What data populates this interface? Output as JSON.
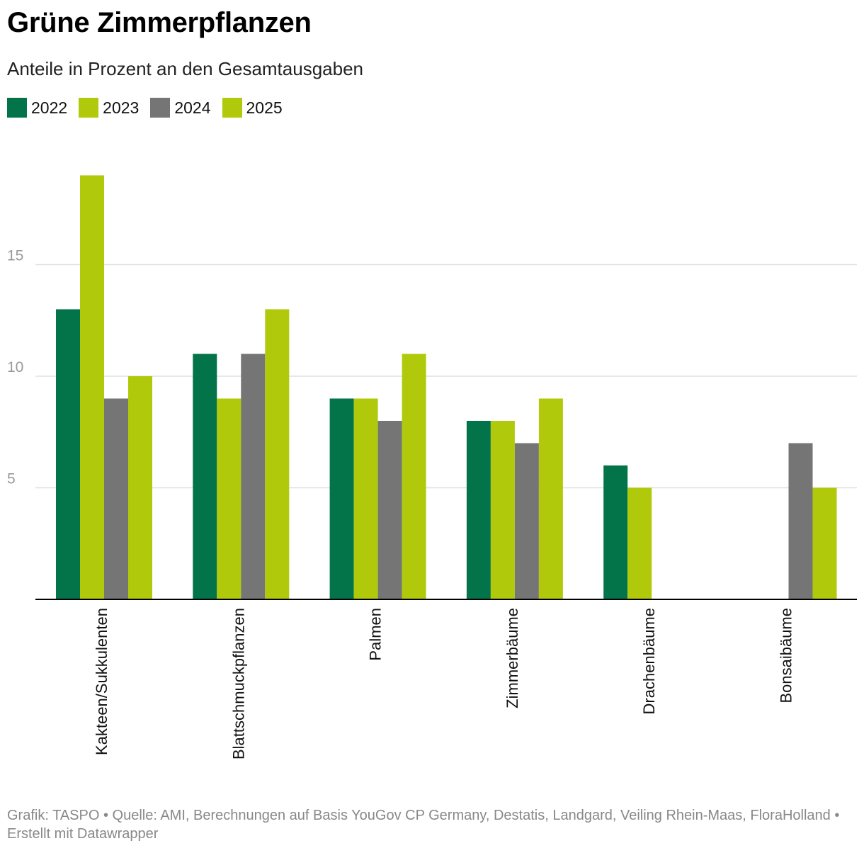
{
  "title": "Grüne Zimmerpflanzen",
  "subtitle": "Anteile in Prozent an den Gesamtausgaben",
  "footer": "Grafik: TASPO • Quelle: AMI, Berechnungen auf Basis YouGov CP Germany, Destatis, Landgard, Veiling Rhein-Maas, FloraHolland • Erstellt mit Datawrapper",
  "colors": {
    "2022": "#03744a",
    "2023": "#b0ca0b",
    "2024": "#757575",
    "2025": "#b0ca0b",
    "grid": "#e0e0e0",
    "axis": "#000000",
    "tick_text": "#999999"
  },
  "chart_data": {
    "type": "bar",
    "categories": [
      "Kakteen/Sukkulenten",
      "Blattschmuckpflanzen",
      "Palmen",
      "Zimmerbäume",
      "Drachenbäume",
      "Bonsaibäume"
    ],
    "series": [
      {
        "name": "2022",
        "values": [
          13,
          11,
          9,
          8,
          6,
          null
        ]
      },
      {
        "name": "2023",
        "values": [
          19,
          9,
          9,
          8,
          5,
          null
        ]
      },
      {
        "name": "2024",
        "values": [
          9,
          11,
          8,
          7,
          null,
          7
        ]
      },
      {
        "name": "2025",
        "values": [
          10,
          13,
          11,
          9,
          null,
          5
        ]
      }
    ],
    "yticks": [
      5,
      10,
      15
    ],
    "ylim": [
      0,
      20
    ],
    "grid": true,
    "legend": "top-left"
  }
}
